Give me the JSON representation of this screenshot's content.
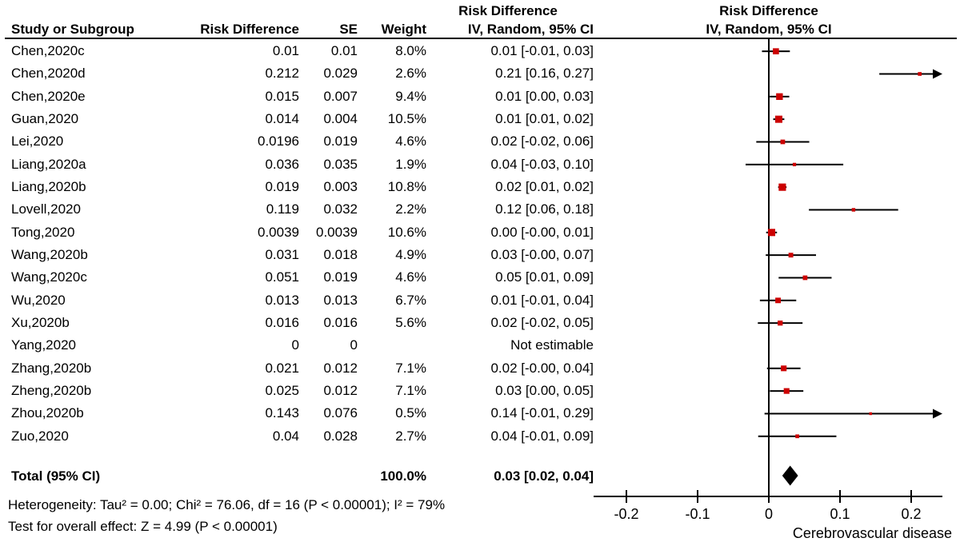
{
  "colors": {
    "marker": "#CC0000",
    "line": "#000000",
    "diamond": "#000000",
    "text": "#000000"
  },
  "chart_data": {
    "type": "scatter",
    "variant": "forest_plot",
    "columns": {
      "study": "Study or Subgroup",
      "rd": "Risk Difference",
      "se": "SE",
      "weight": "Weight",
      "ci": "IV, Random, 95% CI"
    },
    "left_ci_header_top": "Risk Difference",
    "plot_header_top": "Risk Difference",
    "plot_header_bottom": "IV, Random, 95% CI",
    "xlabel": "Cerebrovascular disease",
    "xlim": [
      -0.245,
      0.245
    ],
    "x_ticks": [
      -0.2,
      -0.1,
      0,
      0.1,
      0.2
    ],
    "x_tick_labels": [
      "-0.2",
      "-0.1",
      "0",
      "0.1",
      "0.2"
    ],
    "grid": false,
    "studies": [
      {
        "name": "Chen,2020c",
        "rd": "0.01",
        "se": "0.01",
        "weight": "8.0%",
        "ci": "0.01 [-0.01, 0.03]",
        "est": 0.01,
        "lo": -0.0096,
        "hi": 0.0296,
        "w": 8.0,
        "estimable": true
      },
      {
        "name": "Chen,2020d",
        "rd": "0.212",
        "se": "0.029",
        "weight": "2.6%",
        "ci": "0.21 [0.16, 0.27]",
        "est": 0.212,
        "lo": 0.1552,
        "hi": 0.2688,
        "w": 2.6,
        "estimable": true
      },
      {
        "name": "Chen,2020e",
        "rd": "0.015",
        "se": "0.007",
        "weight": "9.4%",
        "ci": "0.01 [0.00, 0.03]",
        "est": 0.015,
        "lo": 0.0013,
        "hi": 0.0287,
        "w": 9.4,
        "estimable": true
      },
      {
        "name": "Guan,2020",
        "rd": "0.014",
        "se": "0.004",
        "weight": "10.5%",
        "ci": "0.01 [0.01, 0.02]",
        "est": 0.014,
        "lo": 0.0062,
        "hi": 0.0218,
        "w": 10.5,
        "estimable": true
      },
      {
        "name": "Lei,2020",
        "rd": "0.0196",
        "se": "0.019",
        "weight": "4.6%",
        "ci": "0.02 [-0.02, 0.06]",
        "est": 0.0196,
        "lo": -0.0176,
        "hi": 0.0568,
        "w": 4.6,
        "estimable": true
      },
      {
        "name": "Liang,2020a",
        "rd": "0.036",
        "se": "0.035",
        "weight": "1.9%",
        "ci": "0.04 [-0.03, 0.10]",
        "est": 0.036,
        "lo": -0.0326,
        "hi": 0.1046,
        "w": 1.9,
        "estimable": true
      },
      {
        "name": "Liang,2020b",
        "rd": "0.019",
        "se": "0.003",
        "weight": "10.8%",
        "ci": "0.02 [0.01, 0.02]",
        "est": 0.019,
        "lo": 0.0131,
        "hi": 0.0249,
        "w": 10.8,
        "estimable": true
      },
      {
        "name": "Lovell,2020",
        "rd": "0.119",
        "se": "0.032",
        "weight": "2.2%",
        "ci": "0.12 [0.06, 0.18]",
        "est": 0.119,
        "lo": 0.0563,
        "hi": 0.1817,
        "w": 2.2,
        "estimable": true
      },
      {
        "name": "Tong,2020",
        "rd": "0.0039",
        "se": "0.0039",
        "weight": "10.6%",
        "ci": "0.00 [-0.00, 0.01]",
        "est": 0.0039,
        "lo": -0.0037,
        "hi": 0.0115,
        "w": 10.6,
        "estimable": true
      },
      {
        "name": "Wang,2020b",
        "rd": "0.031",
        "se": "0.018",
        "weight": "4.9%",
        "ci": "0.03 [-0.00, 0.07]",
        "est": 0.031,
        "lo": -0.0043,
        "hi": 0.0663,
        "w": 4.9,
        "estimable": true
      },
      {
        "name": "Wang,2020c",
        "rd": "0.051",
        "se": "0.019",
        "weight": "4.6%",
        "ci": "0.05 [0.01, 0.09]",
        "est": 0.051,
        "lo": 0.0138,
        "hi": 0.0882,
        "w": 4.6,
        "estimable": true
      },
      {
        "name": "Wu,2020",
        "rd": "0.013",
        "se": "0.013",
        "weight": "6.7%",
        "ci": "0.01 [-0.01, 0.04]",
        "est": 0.013,
        "lo": -0.0125,
        "hi": 0.0385,
        "w": 6.7,
        "estimable": true
      },
      {
        "name": "Xu,2020b",
        "rd": "0.016",
        "se": "0.016",
        "weight": "5.6%",
        "ci": "0.02 [-0.02, 0.05]",
        "est": 0.016,
        "lo": -0.0154,
        "hi": 0.0474,
        "w": 5.6,
        "estimable": true
      },
      {
        "name": "Yang,2020",
        "rd": "0",
        "se": "0",
        "weight": "",
        "ci": "Not estimable",
        "est": null,
        "lo": null,
        "hi": null,
        "w": 0,
        "estimable": false
      },
      {
        "name": "Zhang,2020b",
        "rd": "0.021",
        "se": "0.012",
        "weight": "7.1%",
        "ci": "0.02 [-0.00, 0.04]",
        "est": 0.021,
        "lo": -0.0025,
        "hi": 0.0445,
        "w": 7.1,
        "estimable": true
      },
      {
        "name": "Zheng,2020b",
        "rd": "0.025",
        "se": "0.012",
        "weight": "7.1%",
        "ci": "0.03 [0.00, 0.05]",
        "est": 0.025,
        "lo": 0.0015,
        "hi": 0.0485,
        "w": 7.1,
        "estimable": true
      },
      {
        "name": "Zhou,2020b",
        "rd": "0.143",
        "se": "0.076",
        "weight": "0.5%",
        "ci": "0.14 [-0.01, 0.29]",
        "est": 0.143,
        "lo": -0.006,
        "hi": 0.292,
        "w": 0.5,
        "estimable": true
      },
      {
        "name": "Zuo,2020",
        "rd": "0.04",
        "se": "0.028",
        "weight": "2.7%",
        "ci": "0.04 [-0.01, 0.09]",
        "est": 0.04,
        "lo": -0.0149,
        "hi": 0.0949,
        "w": 2.7,
        "estimable": true
      }
    ],
    "total": {
      "label": "Total (95% CI)",
      "weight": "100.0%",
      "ci": "0.03 [0.02, 0.04]",
      "est": 0.03,
      "lo": 0.02,
      "hi": 0.04
    },
    "heterogeneity": "Heterogeneity: Tau² = 0.00; Chi² = 76.06, df = 16 (P < 0.00001); I² = 79%",
    "overall_effect": "Test for overall effect: Z = 4.99 (P < 0.00001)"
  }
}
